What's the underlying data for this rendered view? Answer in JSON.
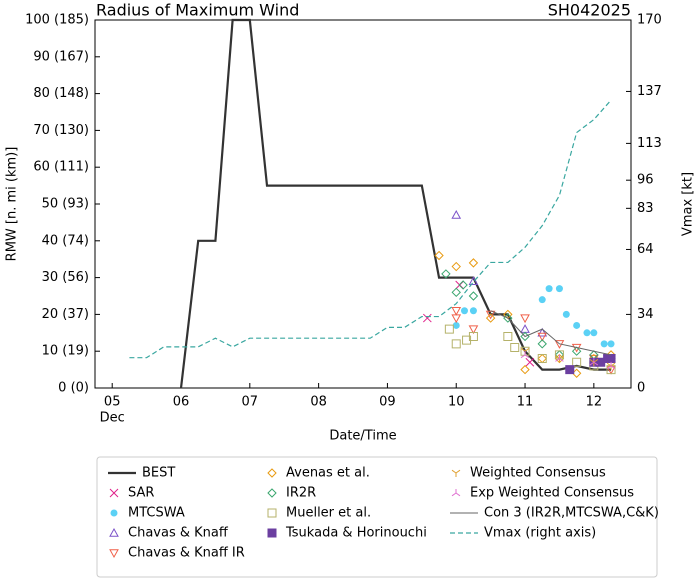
{
  "chart_data": {
    "type": "line",
    "title": "Radius of Maximum Wind",
    "subtitle": "SH042025",
    "x_label": "Date/Time",
    "y_label": "RMW [n. mi (km)]",
    "y2_label": "Vmax [kt]",
    "xlim": [
      4.75,
      12.54
    ],
    "ylim": [
      0,
      100
    ],
    "y2lim": [
      0,
      170
    ],
    "xticks": [
      {
        "value": 5,
        "label": "05"
      },
      {
        "value": 6,
        "label": "06"
      },
      {
        "value": 7,
        "label": "07"
      },
      {
        "value": 8,
        "label": "08"
      },
      {
        "value": 9,
        "label": "09"
      },
      {
        "value": 10,
        "label": "10"
      },
      {
        "value": 11,
        "label": "11"
      },
      {
        "value": 12,
        "label": "12"
      }
    ],
    "x_month_label": "Dec",
    "yticks": [
      {
        "value": 0,
        "label": "0 (0)"
      },
      {
        "value": 10,
        "label": "10 (19)"
      },
      {
        "value": 20,
        "label": "20 (37)"
      },
      {
        "value": 30,
        "label": "30 (56)"
      },
      {
        "value": 40,
        "label": "40 (74)"
      },
      {
        "value": 50,
        "label": "50 (93)"
      },
      {
        "value": 60,
        "label": "60 (111)"
      },
      {
        "value": 70,
        "label": "70 (130)"
      },
      {
        "value": 80,
        "label": "80 (148)"
      },
      {
        "value": 90,
        "label": "90 (167)"
      },
      {
        "value": 100,
        "label": "100 (185)"
      }
    ],
    "y2ticks": [
      0,
      34,
      64,
      83,
      96,
      113,
      137,
      170
    ],
    "grid": false,
    "series": [
      {
        "name": "BEST",
        "color": "#333333",
        "marker": "line",
        "x": [
          6.0,
          6.25,
          6.5,
          6.75,
          7.0,
          7.25,
          7.5,
          7.75,
          8.0,
          8.25,
          8.5,
          8.75,
          9.0,
          9.25,
          9.5,
          9.75,
          10.0,
          10.25,
          10.5,
          10.75,
          11.0,
          11.25,
          11.5,
          11.75,
          12.0,
          12.25
        ],
        "y": [
          0,
          40,
          40,
          100,
          100,
          55,
          55,
          55,
          55,
          55,
          55,
          55,
          55,
          55,
          55,
          30,
          30,
          30,
          20,
          20,
          10,
          5,
          5,
          6,
          5,
          5
        ]
      },
      {
        "name": "SAR",
        "color": "#e0218a",
        "marker": "x",
        "x": [
          9.58,
          10.05,
          11.07
        ],
        "y": [
          19,
          28,
          7
        ]
      },
      {
        "name": "MTCSWA",
        "color": "#5bd1f5",
        "marker": "circle",
        "x": [
          10.0,
          10.12,
          10.25,
          11.25,
          11.35,
          11.5,
          11.6,
          11.75,
          11.9,
          12.0,
          12.15,
          12.25
        ],
        "y": [
          17,
          21,
          21,
          24,
          27,
          27,
          20,
          17,
          15,
          15,
          12,
          12
        ]
      },
      {
        "name": "Chavas & Knaff",
        "color": "#7b52c9",
        "marker": "tri-up",
        "x": [
          10.0,
          10.25,
          11.0,
          11.25
        ],
        "y": [
          47,
          29,
          16,
          15
        ]
      },
      {
        "name": "Chavas & Knaff IR",
        "color": "#f0604a",
        "marker": "tri-down",
        "x": [
          10.0,
          10.0,
          10.25,
          10.5,
          11.0,
          11.25,
          11.5,
          11.75,
          12.0,
          12.25
        ],
        "y": [
          21,
          19,
          16,
          20,
          19,
          14,
          12,
          11,
          8,
          5
        ]
      },
      {
        "name": "Avenas et al.",
        "color": "#e89a10",
        "marker": "diamond",
        "x": [
          9.75,
          10.0,
          10.25,
          10.5,
          10.75,
          11.0,
          11.25,
          11.5,
          11.75,
          12.0,
          12.25
        ],
        "y": [
          36,
          33,
          34,
          19,
          20,
          5,
          8,
          8,
          4,
          8,
          9
        ]
      },
      {
        "name": "IR2R",
        "color": "#3aa66e",
        "marker": "diamond",
        "x": [
          9.85,
          10.0,
          10.1,
          10.25,
          10.75,
          11.0,
          11.25,
          11.5,
          11.75,
          12.0,
          12.25
        ],
        "y": [
          31,
          26,
          28,
          25,
          19,
          14,
          12,
          9,
          10,
          9,
          8
        ]
      },
      {
        "name": "Mueller et al.",
        "color": "#b5b26a",
        "marker": "square",
        "x": [
          9.9,
          10.0,
          10.15,
          10.25,
          10.75,
          10.85,
          11.0,
          11.25,
          11.5,
          11.75,
          12.0,
          12.25
        ],
        "y": [
          16,
          12,
          13,
          14,
          14,
          11,
          10,
          8,
          9,
          7,
          6,
          5
        ]
      },
      {
        "name": "Tsukada & Horinouchi",
        "color": "#6b3fa0",
        "marker": "square-filled",
        "x": [
          11.65,
          12.0,
          12.1,
          12.2,
          12.25
        ],
        "y": [
          5,
          7,
          7,
          8,
          8
        ]
      },
      {
        "name": "Weighted Consensus",
        "color": "#e0a030",
        "marker": "tri-y",
        "x": [
          11.0,
          11.5,
          12.0,
          12.25
        ],
        "y": [
          10,
          8,
          7,
          6
        ]
      },
      {
        "name": "Exp Weighted Consensus",
        "color": "#e070d0",
        "marker": "tri-y-inv",
        "x": [
          11.0,
          11.5,
          12.0,
          12.25
        ],
        "y": [
          9,
          8,
          7,
          6
        ]
      },
      {
        "name": "Con 3 (IR2R,MTCSWA,C&K)",
        "color": "#666666",
        "marker": "thin-line",
        "x": [
          10.5,
          10.75,
          11.0,
          11.25,
          11.5,
          11.75,
          12.0,
          12.25
        ],
        "y": [
          21,
          19,
          14,
          16,
          12,
          11,
          10,
          9
        ]
      },
      {
        "name": "Vmax (right axis)",
        "color": "#3aa7a0",
        "marker": "dashed-line",
        "axis": "y2",
        "x": [
          5.25,
          5.5,
          5.75,
          6.0,
          6.25,
          6.5,
          6.75,
          7.0,
          7.25,
          7.5,
          7.75,
          8.0,
          8.25,
          8.5,
          8.75,
          9.0,
          9.25,
          9.5,
          9.75,
          10.0,
          10.25,
          10.5,
          10.75,
          11.0,
          11.25,
          11.5,
          11.75,
          12.0,
          12.25
        ],
        "y": [
          14,
          14,
          19,
          19,
          19,
          23,
          19,
          23,
          23,
          23,
          23,
          23,
          23,
          23,
          23,
          28,
          28,
          33,
          33,
          39,
          49,
          58,
          58,
          65,
          75,
          89,
          118,
          124,
          133
        ]
      }
    ]
  }
}
